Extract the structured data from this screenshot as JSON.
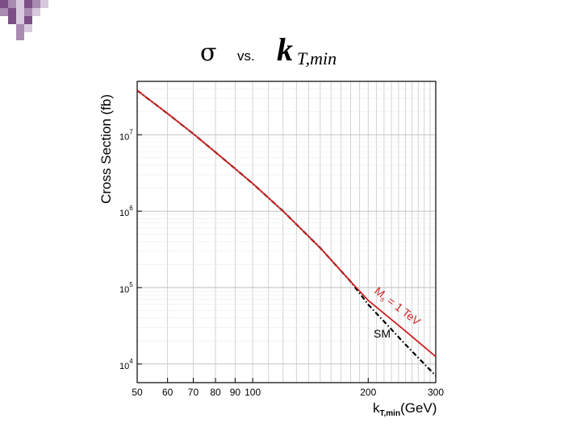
{
  "slide": {
    "title_symbol": "σ",
    "title_vs": "vs.",
    "title_variable": "k",
    "title_subscript": "T,min",
    "decor_colors": [
      "#7b4f86",
      "#a98ab0",
      "#d9c9dd"
    ]
  },
  "chart_data": {
    "type": "line",
    "ylabel": "Cross Section (fb)",
    "xlabel_main": "k",
    "xlabel_sub": "T,min",
    "xlabel_unit": "(GeV)",
    "x_scale": "log",
    "y_scale": "log",
    "xlim": [
      50,
      300
    ],
    "ylim": [
      5700,
      50000000
    ],
    "x_ticks": [
      {
        "value": 50,
        "label": "50"
      },
      {
        "value": 60,
        "label": "60"
      },
      {
        "value": 70,
        "label": "70"
      },
      {
        "value": 80,
        "label": "80"
      },
      {
        "value": 90,
        "label": "90"
      },
      {
        "value": 100,
        "label": "100"
      },
      {
        "value": 200,
        "label": "200"
      },
      {
        "value": 300,
        "label": "300"
      }
    ],
    "y_ticks": [
      {
        "value": 10000,
        "base": "10",
        "exp": "4"
      },
      {
        "value": 100000,
        "base": "10",
        "exp": "5"
      },
      {
        "value": 1000000,
        "base": "10",
        "exp": "6"
      },
      {
        "value": 10000000,
        "base": "10",
        "exp": "7"
      }
    ],
    "series": [
      {
        "name": "M_s = 1 TeV",
        "label_main": "M",
        "label_sub": "s",
        "label_rest": " = 1 TeV",
        "color": "#cc2222",
        "style": "solid",
        "x": [
          50,
          60,
          70,
          80,
          90,
          100,
          120,
          150,
          180,
          200,
          250,
          300
        ],
        "y": [
          38000000,
          19000000,
          10300000,
          5900000,
          3600000,
          2300000,
          1000000,
          330000,
          120000,
          68000,
          27000,
          12500
        ]
      },
      {
        "name": "SM",
        "label_main": "SM",
        "color": "#000000",
        "style": "dashdot",
        "x": [
          50,
          60,
          70,
          80,
          90,
          100,
          120,
          150,
          180,
          200,
          250,
          300
        ],
        "y": [
          38000000,
          19000000,
          10300000,
          5900000,
          3600000,
          2300000,
          1000000,
          330000,
          120000,
          60000,
          18000,
          7000
        ]
      }
    ],
    "grid": true,
    "legend": "inline labels"
  }
}
